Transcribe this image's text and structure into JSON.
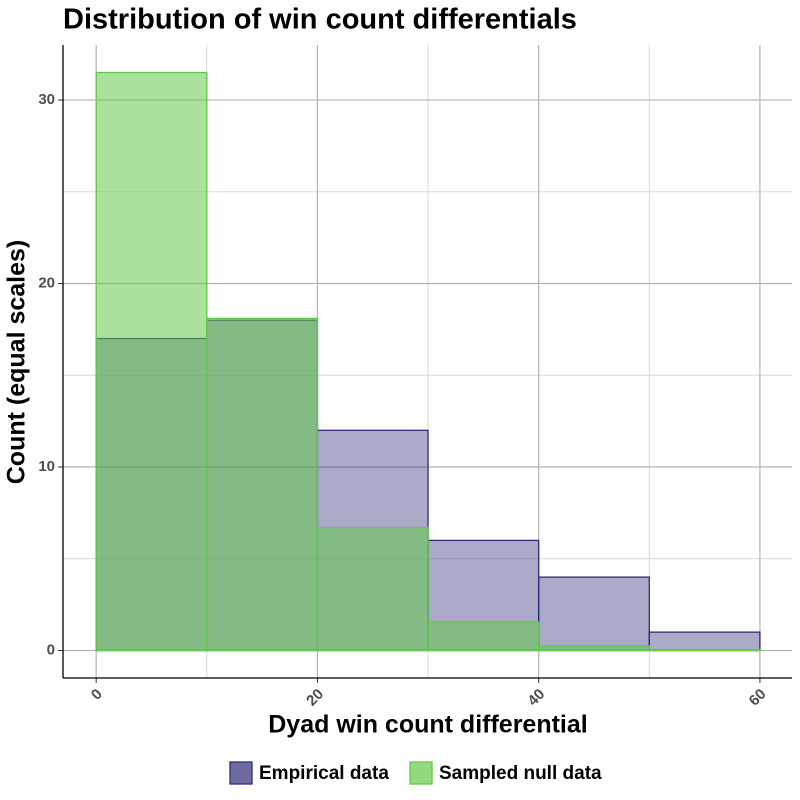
{
  "chart_data": {
    "type": "histogram",
    "title": "Distribution of win count differentials",
    "x_label": "Dyad win count differential",
    "y_label": "Count (equal scales)",
    "bins": [
      0,
      10,
      20,
      30,
      40,
      50,
      60
    ],
    "series": [
      {
        "name": "Empirical data",
        "color": "#2e2e78",
        "fill": "#2e2e78",
        "values": [
          17,
          18,
          12,
          6,
          4,
          1
        ]
      },
      {
        "name": "Sampled null data",
        "color": "#64c94a",
        "fill": "#64c94a",
        "values": [
          31.5,
          18.1,
          6.7,
          1.55,
          0.25,
          0.05
        ]
      }
    ],
    "xlim": [
      -3,
      62.9
    ],
    "ylim": [
      -1.5,
      33
    ],
    "xticks": [
      0,
      20,
      40,
      60
    ],
    "yticks": [
      0,
      10,
      20,
      30
    ],
    "xminorticks": [
      10,
      30,
      50
    ],
    "yminorticks": [
      5,
      15,
      25
    ],
    "grid": true,
    "legend": "bottom"
  }
}
